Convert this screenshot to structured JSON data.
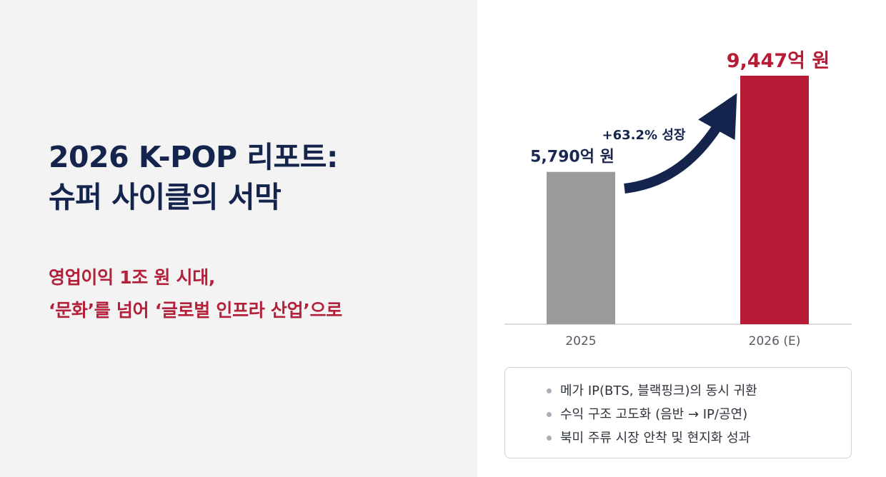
{
  "left": {
    "title_lines": [
      "2026 K-POP 리포트:",
      "슈퍼 사이클의 서막"
    ],
    "subtitle_lines": [
      "영업이익 1조 원 시대,",
      "‘문화’를 넘어 ‘글로벌 인프라 산업’으로"
    ]
  },
  "chart_data": {
    "type": "bar",
    "categories": [
      "2025",
      "2026 (E)"
    ],
    "values": [
      5790,
      9447
    ],
    "value_labels": [
      "5,790억 원",
      "9,447억 원"
    ],
    "unit": "억 원",
    "bar_colors": [
      "#9a9a9a",
      "#b71c36"
    ],
    "value_label_colors": [
      "#1b2750",
      "#b71c36"
    ],
    "growth_label": "+63.2% 성장",
    "arrow_color": "#14244c",
    "baseline_color": "#cfcfcf",
    "ylim": [
      0,
      10000
    ],
    "grid": false
  },
  "notes": {
    "items": [
      "메가 IP(BTS, 블랙핑크)의 동시 귀환",
      "수익 구조 고도화 (음반 → IP/공연)",
      "북미 주류 시장 안착 및 현지화 성과"
    ]
  }
}
